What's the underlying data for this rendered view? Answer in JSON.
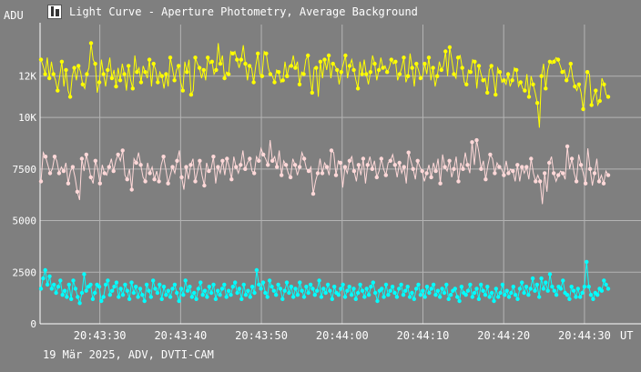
{
  "window": {
    "icon": "chart-window-icon",
    "title": "Light Curve - Aperture Photometry, Average Background"
  },
  "footer": {
    "caption": "19 Mär 2025, ADV, DVTI-CAM"
  },
  "colors": {
    "background": "#7f7f7f",
    "plot_frame": "#ffffff",
    "grid": "#b4b4b4",
    "text": "#ffffff"
  },
  "chart_data": {
    "type": "line",
    "title": "Light Curve - Aperture Photometry, Average Background",
    "ylabel": "ADU",
    "xlabel": "UT",
    "ylim": [
      0,
      14500
    ],
    "yticks": [
      0,
      2500,
      5000,
      7500,
      10000,
      12000
    ],
    "ytick_labels": [
      "0",
      "2500",
      "5000",
      "7500",
      "10K",
      "12K"
    ],
    "xlim": [
      "20:43:22.6",
      "20:44:37.0"
    ],
    "xticks": [
      "20:43:30",
      "20:43:40",
      "20:43:50",
      "20:44:00",
      "20:44:10",
      "20:44:20",
      "20:44:30"
    ],
    "grid": true,
    "series": [
      {
        "color": "#ffff00",
        "values": [
          12800,
          12500,
          12100,
          12900,
          11900,
          12700,
          12100,
          11800,
          11300,
          12000,
          12700,
          11500,
          12300,
          11300,
          11000,
          12000,
          12400,
          11800,
          12500,
          12200,
          11600,
          11400,
          12100,
          12400,
          13600,
          12800,
          12600,
          11200,
          11700,
          12800,
          12100,
          11500,
          12300,
          12900,
          11900,
          12300,
          11500,
          12400,
          11800,
          12600,
          12100,
          11300,
          12500,
          11800,
          11400,
          13000,
          12200,
          12400,
          11700,
          12500,
          12200,
          11900,
          12800,
          11500,
          12600,
          12300,
          11700,
          12200,
          12000,
          11400,
          12100,
          11500,
          12900,
          12400,
          11800,
          12300,
          12500,
          11700,
          11300,
          12700,
          12200,
          12800,
          11100,
          11300,
          12900,
          12600,
          12400,
          11900,
          12300,
          11800,
          12900,
          12600,
          12700,
          12100,
          12300,
          13600,
          12600,
          13000,
          11900,
          12200,
          12100,
          13200,
          13100,
          13200,
          12800,
          12400,
          12800,
          13500,
          12600,
          11800,
          12500,
          12400,
          11700,
          12500,
          13100,
          12100,
          12000,
          13200,
          13100,
          12400,
          12100,
          12000,
          11700,
          12300,
          12200,
          11700,
          11800,
          12700,
          12000,
          12500,
          12500,
          13000,
          12400,
          12700,
          11600,
          12200,
          12100,
          12800,
          13000,
          12000,
          11200,
          12400,
          12400,
          11000,
          12700,
          11900,
          12800,
          12300,
          13000,
          11900,
          12600,
          12500,
          12300,
          11600,
          12200,
          12600,
          13000,
          11900,
          12500,
          12800,
          12300,
          11800,
          11400,
          12700,
          12100,
          12800,
          12100,
          11600,
          12200,
          13000,
          12600,
          11800,
          12300,
          12900,
          12400,
          12500,
          12200,
          12400,
          12800,
          12600,
          12700,
          11800,
          12100,
          12400,
          12900,
          11700,
          12000,
          13100,
          12400,
          11500,
          12600,
          12300,
          11900,
          12000,
          12600,
          12100,
          12900,
          11800,
          12400,
          11500,
          12000,
          12700,
          12300,
          12500,
          13200,
          12000,
          13400,
          12800,
          12100,
          11900,
          12900,
          13000,
          12400,
          11700,
          11600,
          12300,
          12200,
          12800,
          12700,
          11400,
          12500,
          12100,
          11800,
          11900,
          11200,
          12300,
          12500,
          12000,
          11100,
          12400,
          12200,
          11700,
          11800,
          11600,
          12100,
          11500,
          11800,
          12400,
          12300,
          11500,
          11700,
          11400,
          11300,
          12100,
          11000,
          12000,
          11600,
          11200,
          10700,
          9500,
          12000,
          12600,
          11400,
          12300,
          12700,
          12600,
          12700,
          12900,
          12800,
          12500,
          12200,
          12300,
          11800,
          12000,
          12600,
          11900,
          11500,
          11300,
          11600,
          11200,
          10400,
          11400,
          12200,
          12100,
          10600,
          11000,
          11300,
          10600,
          10800,
          11900,
          11600,
          11100,
          11000
        ],
        "marker_every": 2
      },
      {
        "color": "#ffd8d8",
        "values": [
          6900,
          8300,
          8100,
          7700,
          7300,
          7500,
          8100,
          7900,
          7300,
          7600,
          7400,
          7800,
          6800,
          7400,
          7600,
          7100,
          6400,
          6000,
          8000,
          7400,
          8200,
          7700,
          7100,
          6800,
          7900,
          7500,
          6800,
          7700,
          7300,
          7200,
          7600,
          8000,
          7400,
          7900,
          8200,
          7900,
          8400,
          7200,
          7000,
          7500,
          6500,
          8000,
          7800,
          8300,
          7700,
          7100,
          6900,
          7800,
          7300,
          7600,
          7000,
          7400,
          6900,
          7700,
          8100,
          7500,
          6800,
          7200,
          7600,
          7300,
          7900,
          8400,
          7100,
          6500,
          7600,
          7000,
          7700,
          8000,
          6900,
          7400,
          7900,
          7200,
          6700,
          7800,
          7400,
          7500,
          8100,
          6800,
          7600,
          7300,
          7900,
          7200,
          8000,
          7600,
          7000,
          8100,
          7600,
          7300,
          7700,
          8400,
          7500,
          7800,
          8000,
          7400,
          7300,
          8100,
          7900,
          8500,
          8200,
          8000,
          7700,
          8900,
          7900,
          8100,
          7600,
          8400,
          7200,
          7900,
          7700,
          7300,
          7100,
          8000,
          7700,
          7200,
          7600,
          8300,
          8000,
          7500,
          7400,
          7600,
          6300,
          6900,
          7300,
          8000,
          7300,
          7800,
          7600,
          7200,
          8400,
          8300,
          7200,
          7900,
          7800,
          6600,
          7600,
          7300,
          7900,
          8100,
          7400,
          6900,
          7700,
          7200,
          8000,
          6800,
          7700,
          8100,
          7500,
          7900,
          7100,
          7400,
          8000,
          7500,
          7200,
          7800,
          7900,
          8200,
          7700,
          7100,
          7800,
          7300,
          7600,
          6800,
          8300,
          7900,
          7500,
          7000,
          7900,
          7600,
          7400,
          6900,
          7300,
          7700,
          7100,
          7800,
          7400,
          8000,
          6800,
          8200,
          7600,
          7400,
          7900,
          7100,
          7500,
          8100,
          6900,
          7800,
          7500,
          8300,
          7700,
          7300,
          8800,
          7700,
          8900,
          8300,
          7500,
          7900,
          7000,
          7700,
          8200,
          8000,
          7300,
          7800,
          7600,
          7500,
          7200,
          7900,
          7300,
          7500,
          7400,
          6900,
          7700,
          6900,
          7600,
          7300,
          7600,
          7000,
          8000,
          7300,
          6900,
          7200,
          6900,
          5800,
          7300,
          6400,
          7800,
          8100,
          7300,
          6900,
          7200,
          7400,
          7300,
          7000,
          8600,
          7500,
          8000,
          7300,
          6900,
          8200,
          7700,
          7300,
          6800,
          8500,
          7500,
          6700,
          7300,
          8000,
          6900,
          7200,
          6800,
          7400,
          7200
        ],
        "marker_every": 2
      },
      {
        "color": "#00ffff",
        "values": [
          1700,
          2200,
          2600,
          1900,
          2300,
          1700,
          1900,
          1500,
          1800,
          2100,
          1400,
          1600,
          1300,
          1900,
          1200,
          2100,
          1700,
          1300,
          1000,
          1500,
          2400,
          1600,
          1800,
          1900,
          1200,
          1500,
          1900,
          1800,
          1100,
          1300,
          1900,
          2100,
          1400,
          1600,
          1800,
          2000,
          1300,
          1700,
          1400,
          1900,
          1600,
          1200,
          2000,
          1500,
          1800,
          1300,
          1700,
          1400,
          1100,
          1900,
          1600,
          1300,
          2100,
          1700,
          1500,
          1900,
          1200,
          1800,
          1400,
          1600,
          1300,
          1700,
          1900,
          1500,
          1100,
          1700,
          1400,
          2100,
          1600,
          1800,
          1300,
          1500,
          1200,
          1700,
          2000,
          1400,
          1600,
          1300,
          1800,
          1500,
          1900,
          1200,
          1600,
          1400,
          1700,
          1900,
          1300,
          1600,
          1400,
          1800,
          2000,
          1500,
          1700,
          1200,
          1900,
          1400,
          1600,
          1300,
          1800,
          1500,
          2600,
          1900,
          1700,
          2000,
          1500,
          1300,
          2100,
          1800,
          1600,
          1400,
          1900,
          1700,
          1200,
          1600,
          2000,
          1500,
          1800,
          1300,
          1700,
          1400,
          2000,
          1600,
          1300,
          1800,
          1500,
          1900,
          1700,
          1400,
          1600,
          2100,
          1300,
          1700,
          1500,
          1900,
          1600,
          1200,
          1800,
          1500,
          1400,
          1700,
          1900,
          1300,
          1600,
          1800,
          1400,
          1700,
          1200,
          1500,
          1900,
          1600,
          1300,
          1700,
          1400,
          1800,
          2000,
          1500,
          1100,
          1600,
          1700,
          1300,
          1900,
          1400,
          1600,
          1800,
          1500,
          1300,
          1700,
          1900,
          1400,
          1600,
          1800,
          1300,
          1500,
          1200,
          1700,
          1900,
          1400,
          1600,
          1300,
          1800,
          1500,
          1700,
          1900,
          1400,
          1600,
          1300,
          1700,
          1500,
          1900,
          1200,
          1400,
          1600,
          1700,
          1300,
          1100,
          1800,
          1500,
          1400,
          1600,
          1900,
          1300,
          1500,
          1700,
          1200,
          1900,
          1600,
          1400,
          1800,
          1300,
          1500,
          1100,
          1700,
          1300,
          1500,
          1900,
          1400,
          1600,
          1300,
          1500,
          1800,
          1400,
          1200,
          1700,
          2000,
          1500,
          1800,
          1400,
          1700,
          2200,
          1600,
          1900,
          1300,
          2200,
          1700,
          2000,
          1600,
          2400,
          1800,
          1600,
          1400,
          1800,
          1700,
          2100,
          1500,
          1400,
          1200,
          1800,
          1600,
          1300,
          1700,
          1300,
          1500,
          1800,
          3000,
          1800,
          1400,
          1200,
          1500,
          1400,
          1700,
          1600,
          2100,
          1900,
          1700
        ]
      }
    ]
  }
}
